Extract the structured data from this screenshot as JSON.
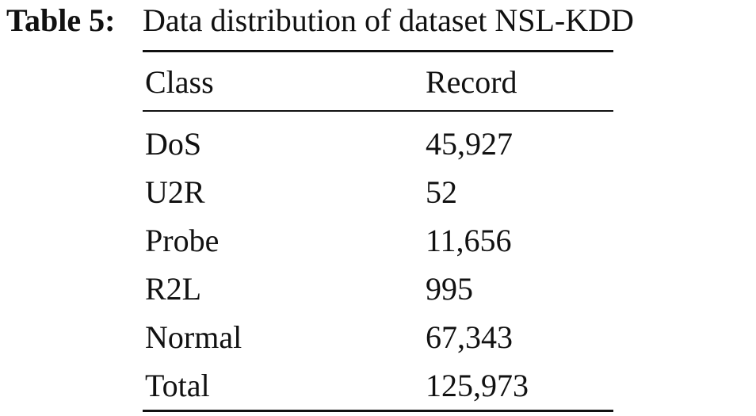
{
  "caption": {
    "label": "Table 5:",
    "text": "Data distribution of dataset NSL-KDD"
  },
  "table": {
    "header": [
      "Class",
      "Record"
    ],
    "rows": [
      [
        "DoS",
        "45,927"
      ],
      [
        "U2R",
        "52"
      ],
      [
        "Probe",
        "11,656"
      ],
      [
        "R2L",
        "995"
      ],
      [
        "Normal",
        "67,343"
      ],
      [
        "Total",
        "125,973"
      ]
    ]
  }
}
